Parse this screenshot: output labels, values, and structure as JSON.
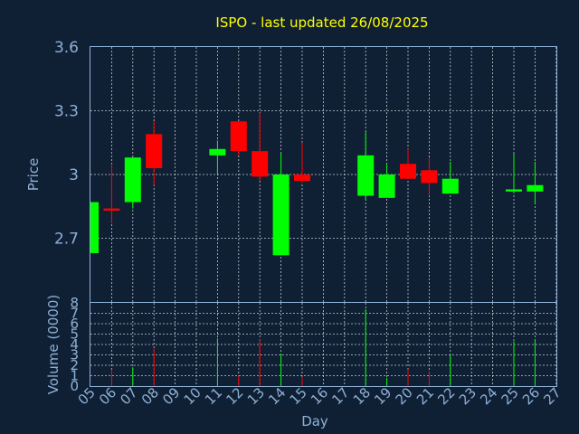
{
  "chart_data": {
    "type": "candlestick",
    "title": "ISPO - last updated 26/08/2025",
    "xlabel": "Day",
    "price_panel": {
      "ylabel": "Price",
      "ylim": [
        2.4,
        3.6
      ],
      "yticks": [
        "2.7",
        "3",
        "3.3",
        "3.6"
      ],
      "grid": true
    },
    "volume_panel": {
      "ylabel": "Volume (0000)",
      "ylim": [
        0,
        8
      ],
      "yticks": [
        "0",
        "1",
        "2",
        "3",
        "4",
        "5",
        "6",
        "7",
        "8"
      ],
      "grid": true
    },
    "x_ticks": [
      "05",
      "06",
      "07",
      "08",
      "09",
      "10",
      "11",
      "12",
      "13",
      "14",
      "15",
      "16",
      "17",
      "18",
      "19",
      "20",
      "21",
      "22",
      "23",
      "24",
      "25",
      "26",
      "27"
    ],
    "candles": [
      {
        "day": "05",
        "open": 2.63,
        "high": 2.87,
        "low": 2.63,
        "close": 2.87,
        "volume": 0
      },
      {
        "day": "06",
        "open": 2.84,
        "high": 3.05,
        "low": 2.77,
        "close": 2.83,
        "volume": 1.6
      },
      {
        "day": "07",
        "open": 2.87,
        "high": 3.08,
        "low": 2.84,
        "close": 3.08,
        "volume": 1.8
      },
      {
        "day": "08",
        "open": 3.19,
        "high": 3.25,
        "low": 2.95,
        "close": 3.03,
        "volume": 3.6
      },
      {
        "day": "11",
        "open": 3.09,
        "high": 3.16,
        "low": 3.0,
        "close": 3.12,
        "volume": 4.6
      },
      {
        "day": "12",
        "open": 3.25,
        "high": 3.25,
        "low": 3.09,
        "close": 3.11,
        "volume": 1.0
      },
      {
        "day": "13",
        "open": 3.11,
        "high": 3.29,
        "low": 2.97,
        "close": 2.99,
        "volume": 4.5
      },
      {
        "day": "14",
        "open": 2.62,
        "high": 3.1,
        "low": 2.62,
        "close": 3.0,
        "volume": 3.1
      },
      {
        "day": "15",
        "open": 3.0,
        "high": 3.15,
        "low": 2.96,
        "close": 2.97,
        "volume": 0.9
      },
      {
        "day": "18",
        "open": 2.9,
        "high": 3.2,
        "low": 2.88,
        "close": 3.09,
        "volume": 7.4
      },
      {
        "day": "19",
        "open": 2.89,
        "high": 3.05,
        "low": 2.89,
        "close": 3.0,
        "volume": 0.8
      },
      {
        "day": "20",
        "open": 3.05,
        "high": 3.12,
        "low": 2.98,
        "close": 2.98,
        "volume": 1.6
      },
      {
        "day": "21",
        "open": 3.02,
        "high": 3.08,
        "low": 2.9,
        "close": 2.96,
        "volume": 1.4
      },
      {
        "day": "22",
        "open": 2.91,
        "high": 3.06,
        "low": 2.91,
        "close": 2.98,
        "volume": 3.0
      },
      {
        "day": "25",
        "open": 2.92,
        "high": 3.1,
        "low": 2.91,
        "close": 2.93,
        "volume": 4.3
      },
      {
        "day": "26",
        "open": 2.92,
        "high": 3.06,
        "low": 2.86,
        "close": 2.95,
        "volume": 4.5
      }
    ],
    "colors": {
      "up": "#00ff00",
      "down": "#ff0000",
      "background": "#0f2035",
      "axis": "#8fb0d4",
      "title": "#ffff00",
      "grid": "#ffffff"
    }
  }
}
